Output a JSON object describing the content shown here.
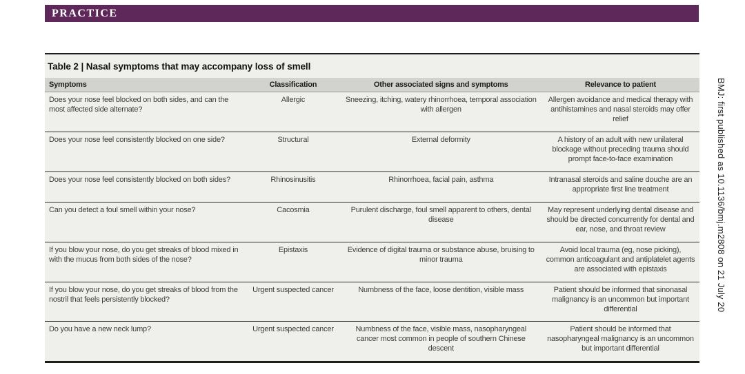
{
  "banner": {
    "label": "PRACTICE"
  },
  "imprint_text": "BMJ: first published as 10.1136/bmj.m2808 on 21 July 20",
  "colors": {
    "banner_bg": "#5f285a",
    "table_bg": "#eff0eb",
    "header_bg": "#d2d3cf"
  },
  "table": {
    "title": "Table 2 | Nasal symptoms that may accompany loss of smell",
    "columns": [
      "Symptoms",
      "Classification",
      "Other associated signs and symptoms",
      "Relevance to patient"
    ],
    "rows": [
      {
        "symptoms": "Does your nose feel blocked on both sides, and can the most affected side alternate?",
        "classification": "Allergic",
        "other": "Sneezing, itching, watery rhinorrhoea, temporal association with allergen",
        "relevance": "Allergen avoidance and medical therapy with antihistamines and nasal steroids may offer relief"
      },
      {
        "symptoms": "Does your nose feel consistently blocked on one side?",
        "classification": "Structural",
        "other": "External deformity",
        "relevance": "A history of an adult with new unilateral blockage without preceding trauma should prompt face-to-face examination"
      },
      {
        "symptoms": "Does your nose feel consistently blocked on both sides?",
        "classification": "Rhinosinusitis",
        "other": "Rhinorrhoea, facial pain, asthma",
        "relevance": "Intranasal steroids and saline douche are an appropriate first line treatment"
      },
      {
        "symptoms": "Can you detect a foul smell within your nose?",
        "classification": "Cacosmia",
        "other": "Purulent discharge, foul smell apparent to others, dental disease",
        "relevance": "May represent underlying dental disease and should be directed concurrently for dental and ear, nose, and throat review"
      },
      {
        "symptoms": "If you blow your nose, do you get streaks of blood mixed in with the mucus from both sides of the nose?",
        "classification": "Epistaxis",
        "other": "Evidence of digital trauma or substance abuse, bruising to minor trauma",
        "relevance": "Avoid local trauma (eg, nose picking), common anticoagulant and antiplatelet agents are associated with epistaxis"
      },
      {
        "symptoms": "If you blow your nose, do you get streaks of blood from the nostril that feels persistently blocked?",
        "classification": "Urgent suspected cancer",
        "other": "Numbness of the face, loose dentition, visible mass",
        "relevance": "Patient should be informed that sinonasal malignancy is an uncommon but important differential"
      },
      {
        "symptoms": "Do you have a new neck lump?",
        "classification": "Urgent suspected cancer",
        "other": "Numbness of the face, visible mass, nasopharyngeal cancer most common in people of southern Chinese descent",
        "relevance": "Patient should be informed that nasopharyngeal malignancy is an uncommon but important differential"
      }
    ]
  }
}
